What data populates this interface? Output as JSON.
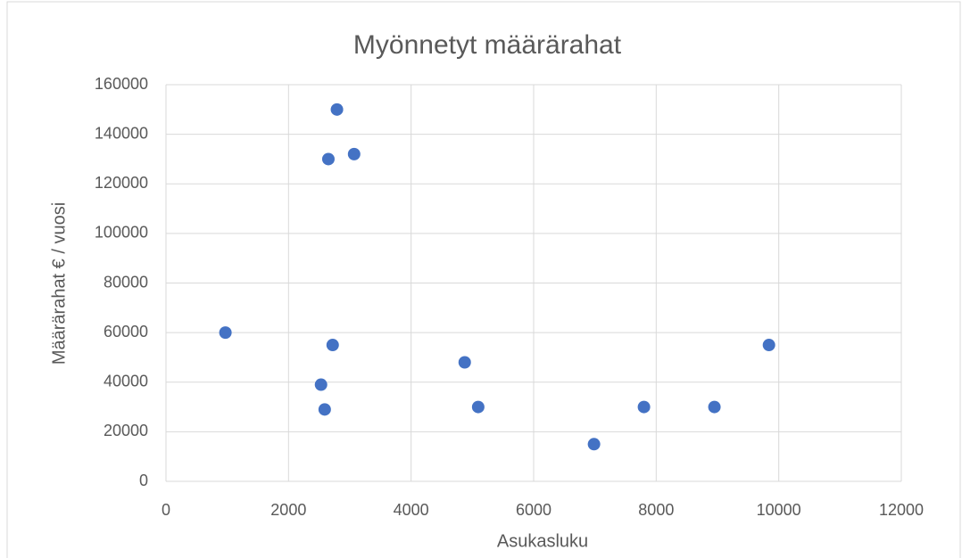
{
  "chart_data": {
    "type": "scatter",
    "title": "Myönnetyt määrärahat",
    "x_label": "Asukasluku",
    "y_label": "Määrärahat € / vuosi",
    "x": [
      970,
      2790,
      2650,
      3070,
      2720,
      2530,
      2590,
      4875,
      5095,
      6985,
      7800,
      8950,
      9840
    ],
    "values": [
      60000,
      150000,
      130000,
      132000,
      55000,
      39000,
      29000,
      48000,
      30000,
      15000,
      30000,
      30000,
      55000
    ],
    "color": "#4472c4",
    "xlim": [
      0,
      12000
    ],
    "xticks": [
      0,
      2000,
      4000,
      6000,
      8000,
      10000,
      12000
    ],
    "ylim": [
      0,
      160000
    ],
    "yticks": [
      0,
      20000,
      40000,
      60000,
      80000,
      100000,
      120000,
      140000,
      160000
    ],
    "grid": true
  }
}
